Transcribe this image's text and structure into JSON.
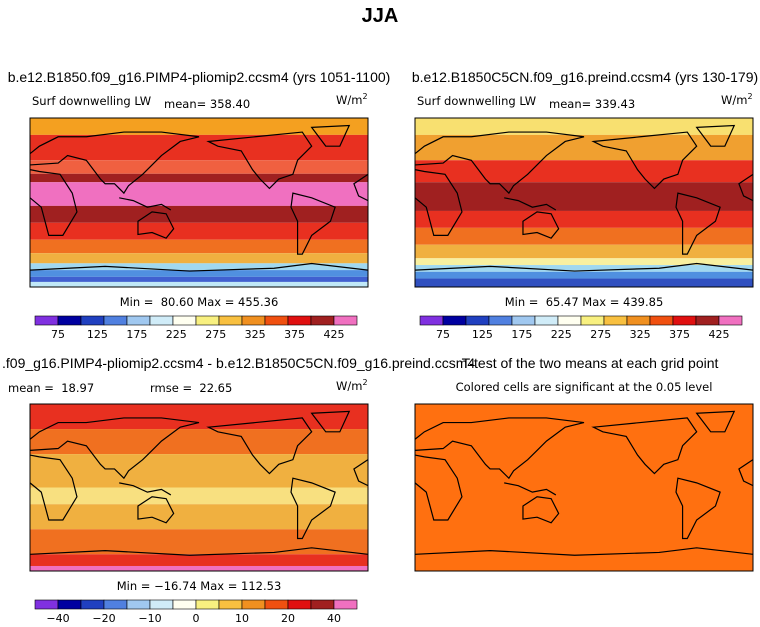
{
  "title": "JJA",
  "panels": [
    {
      "title": "b.e12.B1850.f09_g16.PIMP4-pliomip2.ccsm4 (yrs 1051-1100)",
      "variable": "Surf downwelling LW",
      "mean": "mean= 358.40",
      "units": {
        "base": "W/m",
        "exp": "2"
      },
      "range": "Min =  80.60 Max = 455.36",
      "colorbar_labels": [
        "75",
        "125",
        "175",
        "225",
        "275",
        "325",
        "375",
        "425"
      ]
    },
    {
      "title": "b.e12.B1850C5CN.f09_g16.preind.ccsm4 (yrs 130-179)",
      "variable": "Surf downwelling LW",
      "mean": "mean= 339.43",
      "units": {
        "base": "W/m",
        "exp": "2"
      },
      "range": "Min =  65.47 Max = 439.85",
      "colorbar_labels": [
        "75",
        "125",
        "175",
        "225",
        "275",
        "325",
        "375",
        "425"
      ]
    },
    {
      "title": ".f09_g16.PIMP4-pliomip2.ccsm4 - b.e12.B1850C5CN.f09_g16.preind.ccsm4",
      "stats": [
        "mean =  18.97",
        "rmse =  22.65"
      ],
      "units": {
        "base": "W/m",
        "exp": "2"
      },
      "range": "Min = −16.74 Max = 112.53",
      "colorbar_labels": [
        "−40",
        "−20",
        "−10",
        "0",
        "10",
        "20",
        "40"
      ]
    },
    {
      "title": "T-test of the two means at each grid point",
      "subtitle": "Colored cells are significant at the 0.05 level"
    }
  ]
}
